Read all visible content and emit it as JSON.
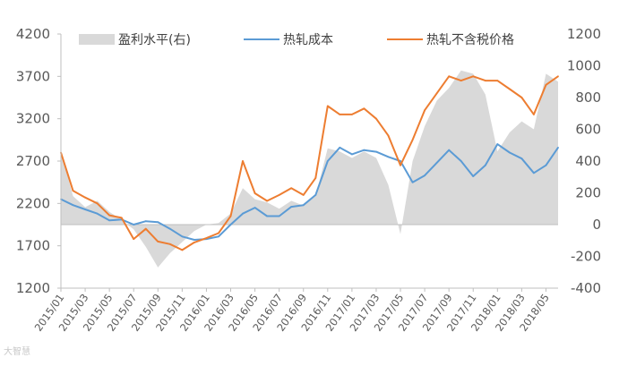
{
  "chart_data": {
    "type": "line",
    "title": "",
    "legend_position": "top",
    "grid": false,
    "x_ticks": [
      "2015/01",
      "2015/03",
      "2015/05",
      "2015/07",
      "2015/09",
      "2015/11",
      "2016/01",
      "2016/03",
      "2016/05",
      "2016/07",
      "2016/09",
      "2016/11",
      "2017/01",
      "2017/03",
      "2017/05",
      "2017/07",
      "2017/09",
      "2017/11",
      "2018/01",
      "2018/03",
      "2018/05"
    ],
    "x_range": [
      "2015/01",
      "2018/06"
    ],
    "y_left": {
      "ticks": [
        1200,
        1700,
        2200,
        2700,
        3200,
        3700,
        4200
      ],
      "range": [
        1200,
        4200
      ]
    },
    "y_right": {
      "ticks": [
        -400,
        -200,
        0,
        200,
        400,
        600,
        800,
        1000,
        1200
      ],
      "range": [
        -400,
        1200
      ]
    },
    "series": [
      {
        "name": "盈利水平(右)",
        "type": "area",
        "axis": "right",
        "color": "#d9d9d9",
        "points": [
          [
            "2015/01",
            460
          ],
          [
            "2015/02",
            180
          ],
          [
            "2015/03",
            110
          ],
          [
            "2015/04",
            150
          ],
          [
            "2015/05",
            80
          ],
          [
            "2015/06",
            30
          ],
          [
            "2015/07",
            -30
          ],
          [
            "2015/08",
            -140
          ],
          [
            "2015/09",
            -270
          ],
          [
            "2015/10",
            -180
          ],
          [
            "2015/11",
            -110
          ],
          [
            "2015/12",
            -40
          ],
          [
            "2016/01",
            0
          ],
          [
            "2016/02",
            10
          ],
          [
            "2016/03",
            70
          ],
          [
            "2016/04",
            230
          ],
          [
            "2016/05",
            160
          ],
          [
            "2016/06",
            140
          ],
          [
            "2016/07",
            100
          ],
          [
            "2016/08",
            150
          ],
          [
            "2016/09",
            120
          ],
          [
            "2016/10",
            180
          ],
          [
            "2016/11",
            480
          ],
          [
            "2016/12",
            460
          ],
          [
            "2017/01",
            420
          ],
          [
            "2017/02",
            460
          ],
          [
            "2017/03",
            420
          ],
          [
            "2017/04",
            250
          ],
          [
            "2017/05",
            -60
          ],
          [
            "2017/06",
            400
          ],
          [
            "2017/07",
            620
          ],
          [
            "2017/08",
            780
          ],
          [
            "2017/09",
            860
          ],
          [
            "2017/10",
            970
          ],
          [
            "2017/11",
            950
          ],
          [
            "2017/12",
            820
          ],
          [
            "2018/01",
            460
          ],
          [
            "2018/02",
            580
          ],
          [
            "2018/03",
            650
          ],
          [
            "2018/04",
            600
          ],
          [
            "2018/05",
            950
          ],
          [
            "2018/06",
            900
          ]
        ]
      },
      {
        "name": "热轧成本",
        "type": "line",
        "axis": "left",
        "color": "#5b9bd5",
        "points": [
          [
            "2015/01",
            2250
          ],
          [
            "2015/02",
            2180
          ],
          [
            "2015/03",
            2130
          ],
          [
            "2015/04",
            2080
          ],
          [
            "2015/05",
            2000
          ],
          [
            "2015/06",
            2010
          ],
          [
            "2015/07",
            1950
          ],
          [
            "2015/08",
            1990
          ],
          [
            "2015/09",
            1980
          ],
          [
            "2015/10",
            1900
          ],
          [
            "2015/11",
            1810
          ],
          [
            "2015/12",
            1770
          ],
          [
            "2016/01",
            1780
          ],
          [
            "2016/02",
            1810
          ],
          [
            "2016/03",
            1950
          ],
          [
            "2016/04",
            2080
          ],
          [
            "2016/05",
            2150
          ],
          [
            "2016/06",
            2050
          ],
          [
            "2016/07",
            2050
          ],
          [
            "2016/08",
            2160
          ],
          [
            "2016/09",
            2180
          ],
          [
            "2016/10",
            2300
          ],
          [
            "2016/11",
            2700
          ],
          [
            "2016/12",
            2860
          ],
          [
            "2017/01",
            2780
          ],
          [
            "2017/02",
            2830
          ],
          [
            "2017/03",
            2810
          ],
          [
            "2017/04",
            2750
          ],
          [
            "2017/05",
            2700
          ],
          [
            "2017/06",
            2450
          ],
          [
            "2017/07",
            2530
          ],
          [
            "2017/08",
            2680
          ],
          [
            "2017/09",
            2830
          ],
          [
            "2017/10",
            2700
          ],
          [
            "2017/11",
            2520
          ],
          [
            "2017/12",
            2650
          ],
          [
            "2018/01",
            2900
          ],
          [
            "2018/02",
            2800
          ],
          [
            "2018/03",
            2730
          ],
          [
            "2018/04",
            2560
          ],
          [
            "2018/05",
            2650
          ],
          [
            "2018/06",
            2860
          ]
        ]
      },
      {
        "name": "热轧不含税价格",
        "type": "line",
        "axis": "left",
        "color": "#ed7d31",
        "points": [
          [
            "2015/01",
            2800
          ],
          [
            "2015/02",
            2350
          ],
          [
            "2015/03",
            2270
          ],
          [
            "2015/04",
            2200
          ],
          [
            "2015/05",
            2060
          ],
          [
            "2015/06",
            2030
          ],
          [
            "2015/07",
            1780
          ],
          [
            "2015/08",
            1900
          ],
          [
            "2015/09",
            1750
          ],
          [
            "2015/10",
            1720
          ],
          [
            "2015/11",
            1650
          ],
          [
            "2015/12",
            1740
          ],
          [
            "2016/01",
            1790
          ],
          [
            "2016/02",
            1850
          ],
          [
            "2016/03",
            2050
          ],
          [
            "2016/04",
            2700
          ],
          [
            "2016/05",
            2320
          ],
          [
            "2016/06",
            2230
          ],
          [
            "2016/07",
            2300
          ],
          [
            "2016/08",
            2380
          ],
          [
            "2016/09",
            2300
          ],
          [
            "2016/10",
            2500
          ],
          [
            "2016/11",
            3350
          ],
          [
            "2016/12",
            3250
          ],
          [
            "2017/01",
            3250
          ],
          [
            "2017/02",
            3320
          ],
          [
            "2017/03",
            3200
          ],
          [
            "2017/04",
            3000
          ],
          [
            "2017/05",
            2650
          ],
          [
            "2017/06",
            2950
          ],
          [
            "2017/07",
            3300
          ],
          [
            "2017/08",
            3500
          ],
          [
            "2017/09",
            3700
          ],
          [
            "2017/10",
            3650
          ],
          [
            "2017/11",
            3700
          ],
          [
            "2017/12",
            3650
          ],
          [
            "2018/01",
            3650
          ],
          [
            "2018/02",
            3550
          ],
          [
            "2018/03",
            3450
          ],
          [
            "2018/04",
            3250
          ],
          [
            "2018/05",
            3600
          ],
          [
            "2018/06",
            3700
          ]
        ]
      }
    ]
  },
  "watermark": "大智慧"
}
